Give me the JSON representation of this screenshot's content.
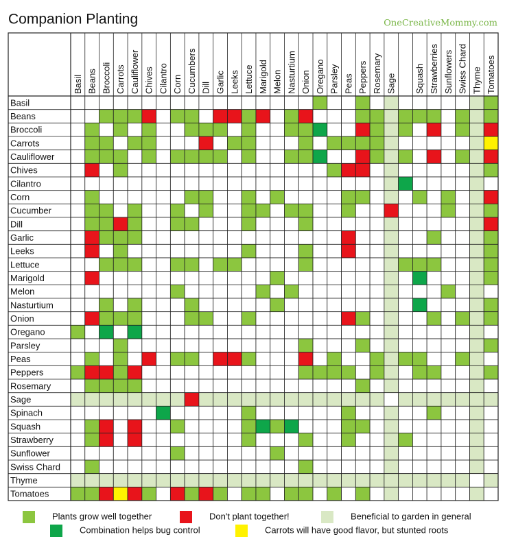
{
  "header": {
    "title": "Companion Planting",
    "site": "OneCreativeMommy.com"
  },
  "columns": [
    "Basil",
    "Beans",
    "Broccoli",
    "Carrots",
    "Cauliflower",
    "Chives",
    "Cilantro",
    "Corn",
    "Cucumbers",
    "Dill",
    "Garlic",
    "Leeks",
    "Lettuce",
    "Marigold",
    "Melon",
    "Nasturtium",
    "Onion",
    "Oregano",
    "Parsley",
    "Peas",
    "Peppers",
    "Rosemary",
    "Sage",
    null,
    "Squash",
    "Strawberries",
    "Sunflowers",
    "Swiss Chard",
    "Thyme",
    "Tomatoes"
  ],
  "rows": [
    "Basil",
    "Beans",
    "Broccoli",
    "Carrots",
    "Cauliflower",
    "Chives",
    "Cilantro",
    "Corn",
    "Cucumber",
    "Dill",
    "Garlic",
    "Leeks",
    "Lettuce",
    "Marigold",
    "Melon",
    "Nasturtium",
    "Onion",
    "Oregano",
    "Parsley",
    "Peas",
    "Peppers",
    "Rosemary",
    "Sage",
    "Spinach",
    "Squash",
    "Strawberry",
    "Sunflower",
    "Swiss Chard",
    "Thyme",
    "Tomatoes"
  ],
  "cells": [
    [
      0,
      0,
      0,
      0,
      0,
      0,
      0,
      0,
      0,
      0,
      0,
      0,
      0,
      0,
      0,
      0,
      0,
      1,
      0,
      0,
      1,
      0,
      3,
      0,
      0,
      0,
      0,
      0,
      3,
      1
    ],
    [
      0,
      0,
      1,
      1,
      1,
      2,
      0,
      1,
      1,
      0,
      2,
      2,
      1,
      2,
      0,
      1,
      2,
      0,
      0,
      0,
      1,
      1,
      3,
      1,
      1,
      1,
      0,
      1,
      3,
      1
    ],
    [
      0,
      1,
      0,
      1,
      0,
      1,
      0,
      0,
      1,
      1,
      1,
      0,
      1,
      0,
      0,
      1,
      1,
      4,
      0,
      0,
      2,
      1,
      3,
      1,
      0,
      2,
      0,
      1,
      3,
      2
    ],
    [
      0,
      1,
      1,
      0,
      1,
      1,
      0,
      0,
      0,
      2,
      0,
      1,
      1,
      0,
      0,
      0,
      1,
      0,
      1,
      1,
      1,
      1,
      3,
      0,
      0,
      0,
      0,
      0,
      3,
      5
    ],
    [
      0,
      1,
      1,
      1,
      0,
      1,
      0,
      1,
      1,
      1,
      1,
      0,
      1,
      0,
      0,
      1,
      1,
      4,
      0,
      0,
      2,
      1,
      3,
      1,
      0,
      2,
      0,
      1,
      3,
      2
    ],
    [
      0,
      2,
      0,
      1,
      0,
      0,
      0,
      0,
      0,
      0,
      0,
      0,
      0,
      0,
      0,
      0,
      0,
      0,
      1,
      2,
      2,
      0,
      3,
      0,
      0,
      0,
      0,
      0,
      3,
      1
    ],
    [
      0,
      0,
      0,
      0,
      0,
      0,
      0,
      0,
      0,
      0,
      0,
      0,
      0,
      0,
      0,
      0,
      0,
      0,
      0,
      0,
      0,
      0,
      3,
      4,
      0,
      0,
      0,
      0,
      3,
      0
    ],
    [
      0,
      1,
      0,
      0,
      0,
      0,
      0,
      0,
      1,
      1,
      0,
      0,
      1,
      0,
      1,
      0,
      0,
      0,
      0,
      1,
      1,
      0,
      3,
      0,
      1,
      0,
      1,
      0,
      3,
      2
    ],
    [
      0,
      1,
      1,
      0,
      1,
      0,
      0,
      1,
      0,
      1,
      0,
      0,
      1,
      1,
      0,
      1,
      1,
      0,
      0,
      1,
      0,
      0,
      2,
      0,
      0,
      0,
      1,
      0,
      3,
      1
    ],
    [
      0,
      1,
      1,
      2,
      1,
      0,
      0,
      1,
      1,
      0,
      0,
      0,
      1,
      0,
      0,
      0,
      1,
      0,
      0,
      0,
      0,
      0,
      3,
      0,
      0,
      0,
      0,
      0,
      3,
      2
    ],
    [
      0,
      2,
      1,
      1,
      1,
      0,
      0,
      0,
      0,
      0,
      0,
      0,
      0,
      0,
      0,
      0,
      0,
      0,
      0,
      2,
      0,
      0,
      3,
      0,
      0,
      1,
      0,
      0,
      3,
      1
    ],
    [
      0,
      2,
      0,
      1,
      0,
      0,
      0,
      0,
      0,
      0,
      0,
      0,
      1,
      0,
      0,
      0,
      1,
      0,
      0,
      2,
      0,
      0,
      3,
      0,
      0,
      0,
      0,
      0,
      3,
      1
    ],
    [
      0,
      0,
      1,
      1,
      1,
      0,
      0,
      1,
      1,
      0,
      1,
      1,
      0,
      0,
      0,
      0,
      1,
      0,
      0,
      0,
      0,
      0,
      3,
      1,
      1,
      1,
      0,
      0,
      3,
      1
    ],
    [
      0,
      2,
      0,
      0,
      0,
      0,
      0,
      0,
      0,
      0,
      0,
      0,
      0,
      0,
      1,
      0,
      0,
      0,
      0,
      0,
      0,
      0,
      3,
      0,
      4,
      0,
      0,
      0,
      3,
      1
    ],
    [
      0,
      0,
      0,
      0,
      0,
      0,
      0,
      1,
      0,
      0,
      0,
      0,
      0,
      1,
      0,
      1,
      0,
      0,
      0,
      0,
      0,
      0,
      3,
      0,
      0,
      0,
      1,
      0,
      3,
      0
    ],
    [
      0,
      0,
      1,
      0,
      1,
      0,
      0,
      0,
      1,
      0,
      0,
      0,
      0,
      0,
      1,
      0,
      0,
      0,
      0,
      0,
      0,
      0,
      3,
      0,
      4,
      0,
      0,
      0,
      3,
      1
    ],
    [
      0,
      2,
      1,
      1,
      1,
      0,
      0,
      0,
      1,
      1,
      0,
      0,
      1,
      0,
      0,
      0,
      0,
      0,
      0,
      2,
      1,
      0,
      3,
      0,
      0,
      1,
      0,
      1,
      3,
      1
    ],
    [
      1,
      0,
      4,
      0,
      4,
      0,
      0,
      0,
      0,
      0,
      0,
      0,
      0,
      0,
      0,
      0,
      0,
      0,
      0,
      0,
      0,
      0,
      3,
      0,
      0,
      0,
      0,
      0,
      3,
      0
    ],
    [
      0,
      0,
      0,
      1,
      0,
      0,
      0,
      0,
      0,
      0,
      0,
      0,
      0,
      0,
      0,
      0,
      1,
      0,
      0,
      0,
      1,
      0,
      3,
      0,
      0,
      0,
      0,
      0,
      3,
      1
    ],
    [
      0,
      1,
      0,
      1,
      0,
      2,
      0,
      1,
      1,
      0,
      2,
      2,
      1,
      0,
      0,
      0,
      2,
      0,
      1,
      0,
      0,
      1,
      3,
      1,
      1,
      0,
      0,
      1,
      3,
      0
    ],
    [
      1,
      2,
      2,
      1,
      2,
      0,
      0,
      0,
      0,
      0,
      0,
      0,
      0,
      0,
      0,
      0,
      1,
      1,
      1,
      1,
      0,
      1,
      3,
      0,
      1,
      1,
      0,
      0,
      3,
      1
    ],
    [
      0,
      1,
      1,
      1,
      1,
      0,
      0,
      0,
      0,
      0,
      0,
      0,
      0,
      0,
      0,
      0,
      0,
      0,
      0,
      0,
      1,
      0,
      3,
      0,
      0,
      0,
      0,
      0,
      3,
      0
    ],
    [
      3,
      3,
      3,
      3,
      3,
      3,
      3,
      3,
      2,
      3,
      3,
      3,
      3,
      3,
      3,
      3,
      3,
      3,
      3,
      3,
      3,
      3,
      0,
      3,
      3,
      3,
      3,
      3,
      3,
      3
    ],
    [
      0,
      0,
      0,
      0,
      0,
      0,
      4,
      0,
      0,
      0,
      0,
      0,
      1,
      0,
      0,
      0,
      0,
      0,
      0,
      1,
      0,
      0,
      3,
      0,
      0,
      1,
      0,
      0,
      3,
      0
    ],
    [
      0,
      1,
      2,
      0,
      2,
      0,
      0,
      1,
      0,
      0,
      0,
      0,
      1,
      4,
      1,
      4,
      0,
      0,
      0,
      1,
      1,
      0,
      3,
      0,
      0,
      0,
      0,
      0,
      3,
      0
    ],
    [
      0,
      1,
      2,
      0,
      2,
      0,
      0,
      0,
      0,
      0,
      0,
      0,
      1,
      0,
      0,
      0,
      1,
      0,
      0,
      1,
      0,
      0,
      3,
      1,
      0,
      0,
      0,
      0,
      3,
      0
    ],
    [
      0,
      0,
      0,
      0,
      0,
      0,
      0,
      1,
      0,
      0,
      0,
      0,
      0,
      0,
      1,
      0,
      0,
      0,
      0,
      0,
      0,
      0,
      3,
      0,
      0,
      0,
      0,
      0,
      3,
      0
    ],
    [
      0,
      1,
      0,
      0,
      0,
      0,
      0,
      0,
      0,
      0,
      0,
      0,
      0,
      0,
      0,
      0,
      1,
      0,
      0,
      0,
      0,
      0,
      3,
      0,
      0,
      0,
      0,
      0,
      3,
      0
    ],
    [
      3,
      3,
      3,
      3,
      3,
      3,
      3,
      3,
      3,
      3,
      3,
      3,
      3,
      3,
      3,
      3,
      3,
      3,
      3,
      3,
      3,
      3,
      3,
      3,
      3,
      3,
      3,
      3,
      0,
      3
    ],
    [
      1,
      1,
      2,
      5,
      2,
      1,
      0,
      2,
      1,
      2,
      1,
      0,
      1,
      1,
      0,
      1,
      1,
      0,
      1,
      0,
      1,
      0,
      3,
      0,
      0,
      0,
      0,
      0,
      3,
      0
    ]
  ],
  "legend": [
    {
      "color": "#8cc63f",
      "label": "Plants grow well together"
    },
    {
      "color": "#e8141b",
      "label": "Don't plant together!"
    },
    {
      "color": "#d9e8c4",
      "label": "Beneficial to garden in general"
    },
    {
      "color": "#0ea64a",
      "label": "Combination helps bug control"
    },
    {
      "color": "#fff200",
      "label": "Carrots will have good flavor, but stunted roots"
    }
  ]
}
